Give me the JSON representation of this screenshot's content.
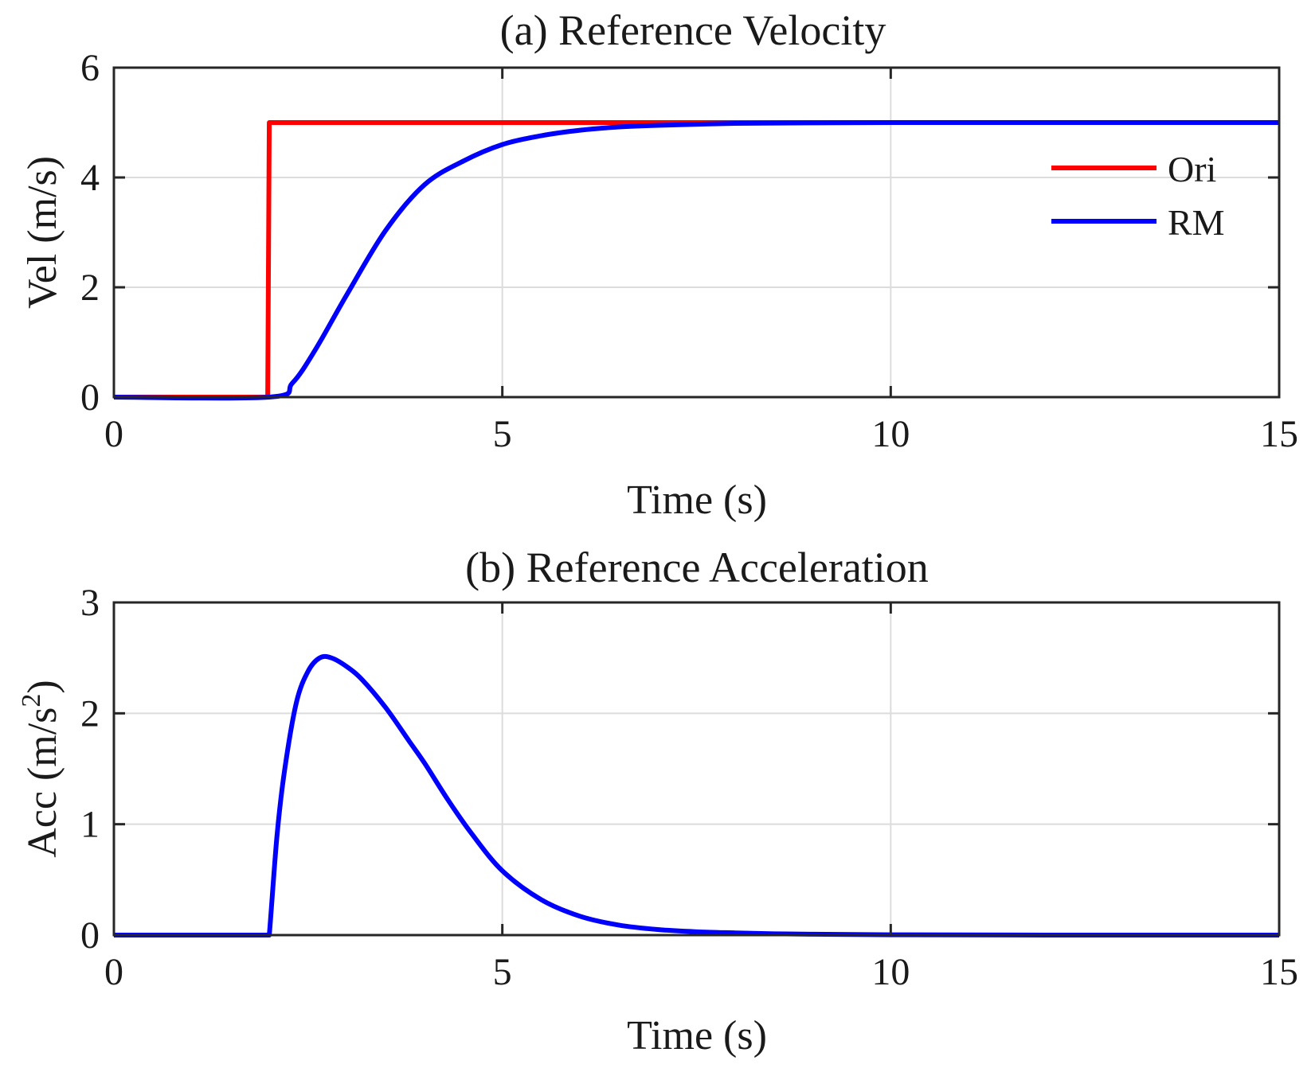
{
  "chart_data": [
    {
      "type": "line",
      "title": "(a) Reference Velocity",
      "xlabel": "Time (s)",
      "ylabel": "Vel (m/s)",
      "xlim": [
        0,
        15
      ],
      "ylim": [
        0,
        6
      ],
      "xticks": [
        "0",
        "5",
        "10",
        "15"
      ],
      "yticks": [
        "0",
        "2",
        "4",
        "6"
      ],
      "grid": true,
      "legend": "right-upper",
      "series": [
        {
          "name": "Ori",
          "color": "#ff0000",
          "x": [
            0,
            1.98,
            2.0,
            3,
            4,
            5,
            6,
            7,
            8,
            9,
            10,
            11,
            12,
            13,
            14,
            15
          ],
          "values": [
            0,
            0,
            5,
            5,
            5,
            5,
            5,
            5,
            5,
            5,
            5,
            5,
            5,
            5,
            5,
            5
          ]
        },
        {
          "name": "RM",
          "color": "#0000ff",
          "x": [
            0,
            2.0,
            2.3,
            2.6,
            3.0,
            3.5,
            4.0,
            4.5,
            5.0,
            5.5,
            6.0,
            6.5,
            7.0,
            8.0,
            9.0,
            10.0,
            12.0,
            15.0
          ],
          "values": [
            0,
            0,
            0.26,
            0.88,
            1.87,
            3.04,
            3.87,
            4.3,
            4.6,
            4.76,
            4.86,
            4.92,
            4.95,
            4.985,
            4.995,
            5.0,
            5.0,
            5.0
          ]
        }
      ]
    },
    {
      "type": "line",
      "title": "(b) Reference Acceleration",
      "xlabel": "Time (s)",
      "ylabel": "Acc (m/s",
      "ylabel_sup": "2",
      "ylabel_end": ")",
      "xlim": [
        0,
        15
      ],
      "ylim": [
        0,
        3
      ],
      "xticks": [
        "0",
        "5",
        "10",
        "15"
      ],
      "yticks": [
        "0",
        "1",
        "2",
        "3"
      ],
      "grid": true,
      "series": [
        {
          "name": "RM",
          "color": "#0000ff",
          "x": [
            0,
            1.98,
            2.0,
            2.1,
            2.2,
            2.35,
            2.5,
            2.65,
            2.8,
            3.0,
            3.2,
            3.5,
            3.8,
            4.0,
            4.3,
            4.6,
            5.0,
            5.5,
            6.0,
            6.5,
            7.0,
            7.5,
            8.0,
            8.5,
            9.0,
            10.0,
            12.0,
            15.0
          ],
          "values": [
            0,
            0,
            0.0,
            0.9,
            1.5,
            2.1,
            2.38,
            2.5,
            2.5,
            2.42,
            2.3,
            2.05,
            1.75,
            1.55,
            1.22,
            0.92,
            0.58,
            0.32,
            0.17,
            0.09,
            0.05,
            0.03,
            0.02,
            0.012,
            0.008,
            0.003,
            0.0,
            0.0
          ]
        }
      ]
    }
  ]
}
